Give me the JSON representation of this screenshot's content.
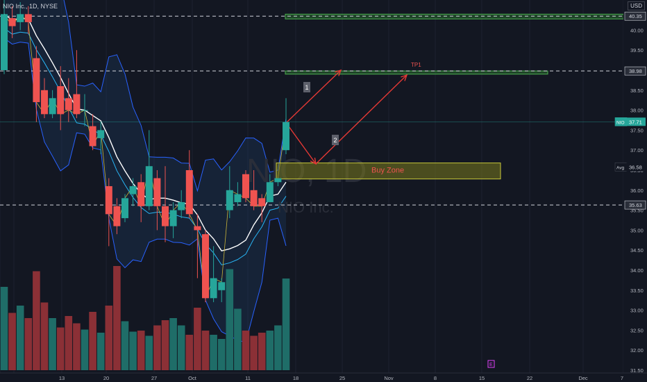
{
  "header": {
    "symbol_line": "NIO Inc., 1D, NYSE"
  },
  "currency": "USD",
  "watermark": {
    "symbol": "NIO, 1D",
    "name": "NIO Inc."
  },
  "colors": {
    "up": "#26a69a",
    "down": "#ef5350",
    "background": "#131722",
    "band_fill": "#1e3a5f",
    "band_line": "#2962ff",
    "arrow": "#e53935",
    "zone": "#7a7a1e",
    "tp": "#2e7d32"
  },
  "chart_data": {
    "type": "candlestick",
    "title": "",
    "y_axis": {
      "range": [
        31.5,
        40.5
      ],
      "ticks": [
        "31.50",
        "32.00",
        "32.50",
        "33.00",
        "33.50",
        "34.00",
        "34.50",
        "35.00",
        "35.50",
        "36.00",
        "36.50",
        "37.00",
        "37.50",
        "38.00",
        "38.50",
        "39.00",
        "39.50",
        "40.00"
      ],
      "top_partial": "40.50"
    },
    "x_axis": {
      "ticks": [
        "13",
        "20",
        "27",
        "Oct",
        "11",
        "18",
        "25",
        "Nov",
        "8",
        "15",
        "22",
        "Dec",
        "7"
      ]
    },
    "candles": [
      {
        "o": 39.0,
        "h": 41.0,
        "l": 38.9,
        "c": 40.4
      },
      {
        "o": 40.3,
        "h": 40.6,
        "l": 39.8,
        "c": 40.1
      },
      {
        "o": 40.2,
        "h": 40.7,
        "l": 40.0,
        "c": 40.4
      },
      {
        "o": 40.4,
        "h": 40.6,
        "l": 39.9,
        "c": 40.2
      },
      {
        "o": 39.3,
        "h": 39.6,
        "l": 37.7,
        "c": 38.2
      },
      {
        "o": 38.5,
        "h": 38.8,
        "l": 37.8,
        "c": 37.9
      },
      {
        "o": 37.9,
        "h": 38.5,
        "l": 37.8,
        "c": 38.3
      },
      {
        "o": 38.6,
        "h": 39.1,
        "l": 37.5,
        "c": 37.9
      },
      {
        "o": 38.3,
        "h": 38.8,
        "l": 37.7,
        "c": 38.0
      },
      {
        "o": 38.4,
        "h": 39.5,
        "l": 37.8,
        "c": 37.9
      },
      {
        "o": 38.0,
        "h": 38.4,
        "l": 37.6,
        "c": 38.0
      },
      {
        "o": 37.6,
        "h": 37.9,
        "l": 37.0,
        "c": 37.1
      },
      {
        "o": 37.3,
        "h": 37.7,
        "l": 36.9,
        "c": 37.5
      },
      {
        "o": 36.1,
        "h": 36.3,
        "l": 34.6,
        "c": 35.4
      },
      {
        "o": 35.6,
        "h": 35.8,
        "l": 34.9,
        "c": 35.1
      },
      {
        "o": 35.3,
        "h": 35.9,
        "l": 35.2,
        "c": 35.8
      },
      {
        "o": 35.9,
        "h": 36.3,
        "l": 35.6,
        "c": 36.1
      },
      {
        "o": 36.2,
        "h": 36.4,
        "l": 35.2,
        "c": 35.6
      },
      {
        "o": 35.6,
        "h": 37.5,
        "l": 35.5,
        "c": 36.6
      },
      {
        "o": 36.3,
        "h": 36.5,
        "l": 35.0,
        "c": 35.6
      },
      {
        "o": 35.6,
        "h": 36.6,
        "l": 34.7,
        "c": 35.1
      },
      {
        "o": 35.1,
        "h": 35.7,
        "l": 34.8,
        "c": 35.5
      },
      {
        "o": 35.5,
        "h": 36.0,
        "l": 35.3,
        "c": 35.7
      },
      {
        "o": 36.5,
        "h": 37.0,
        "l": 35.3,
        "c": 35.4
      },
      {
        "o": 35.1,
        "h": 35.4,
        "l": 33.8,
        "c": 35.0
      },
      {
        "o": 34.9,
        "h": 35.0,
        "l": 33.2,
        "c": 33.3
      },
      {
        "o": 33.3,
        "h": 34.6,
        "l": 33.2,
        "c": 33.8
      },
      {
        "o": 33.5,
        "h": 33.8,
        "l": 33.2,
        "c": 33.7
      },
      {
        "o": 35.5,
        "h": 36.6,
        "l": 35.3,
        "c": 36.0
      },
      {
        "o": 35.7,
        "h": 36.2,
        "l": 35.6,
        "c": 35.9
      },
      {
        "o": 36.4,
        "h": 36.5,
        "l": 35.7,
        "c": 35.8
      },
      {
        "o": 36.0,
        "h": 36.5,
        "l": 35.5,
        "c": 35.6
      },
      {
        "o": 35.8,
        "h": 35.9,
        "l": 35.2,
        "c": 35.6
      },
      {
        "o": 35.7,
        "h": 36.4,
        "l": 35.7,
        "c": 36.2
      },
      {
        "o": 36.2,
        "h": 36.3,
        "l": 36.1,
        "c": 36.3
      },
      {
        "o": 37.0,
        "h": 38.3,
        "l": 36.9,
        "c": 37.7
      }
    ],
    "volume_relative": [
      0.8,
      0.55,
      0.62,
      0.5,
      0.95,
      0.65,
      0.5,
      0.41,
      0.52,
      0.45,
      0.39,
      0.56,
      0.36,
      0.62,
      1.0,
      0.47,
      0.37,
      0.38,
      0.33,
      0.43,
      0.48,
      0.5,
      0.43,
      0.34,
      0.6,
      0.38,
      0.34,
      0.3,
      0.97,
      0.59,
      0.38,
      0.33,
      0.36,
      0.38,
      0.43,
      0.88
    ],
    "hlines": [
      {
        "price": 40.35,
        "label": "40.35",
        "type": "dashed",
        "label_bg": "#2a2e39"
      },
      {
        "price": 38.98,
        "label": "38.98",
        "type": "dashed",
        "label_bg": "#2a2e39"
      },
      {
        "price": 35.63,
        "label": "35.63",
        "type": "dashed",
        "label_bg": "#2a2e39"
      }
    ],
    "price_markers": [
      {
        "name": "NIO",
        "price": 37.71,
        "label": "37.71"
      },
      {
        "name": "Avg",
        "price": 36.58,
        "label": "36.58"
      }
    ],
    "zones": [
      {
        "name": "TP1",
        "top": 38.98,
        "bottom": 38.9,
        "label": "TP1"
      },
      {
        "name": "TP top",
        "top": 40.4,
        "bottom": 40.28,
        "label": ""
      },
      {
        "name": "Buy Zone",
        "top": 36.68,
        "bottom": 36.28,
        "label": "Buy Zone"
      }
    ],
    "wave_labels": [
      "1",
      "2"
    ],
    "earnings_marker": "E"
  }
}
